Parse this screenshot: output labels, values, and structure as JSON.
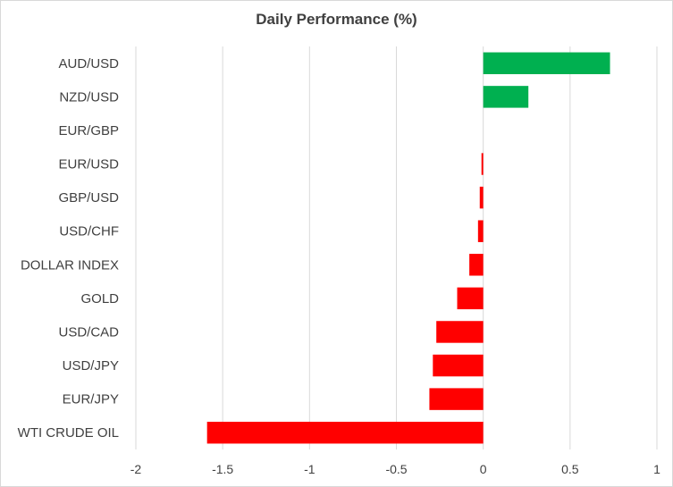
{
  "chart_data": {
    "type": "bar",
    "orientation": "horizontal",
    "title": "Daily Performance (%)",
    "categories": [
      "AUD/USD",
      "NZD/USD",
      "EUR/GBP",
      "EUR/USD",
      "GBP/USD",
      "USD/CHF",
      "DOLLAR INDEX",
      "GOLD",
      "USD/CAD",
      "USD/JPY",
      "EUR/JPY",
      "WTI CRUDE OIL"
    ],
    "values": [
      0.73,
      0.26,
      0.0,
      -0.01,
      -0.02,
      -0.03,
      -0.08,
      -0.15,
      -0.27,
      -0.29,
      -0.31,
      -1.59
    ],
    "xlim": [
      -2,
      1
    ],
    "xticks": [
      "-2",
      "-1.5",
      "-1",
      "-0.5",
      "0",
      "0.5",
      "1"
    ],
    "xlabel": "",
    "ylabel": "",
    "grid": "vertical",
    "colors": {
      "positive": "#00b050",
      "negative": "#ff0000",
      "grid": "#d9d9d9"
    }
  }
}
